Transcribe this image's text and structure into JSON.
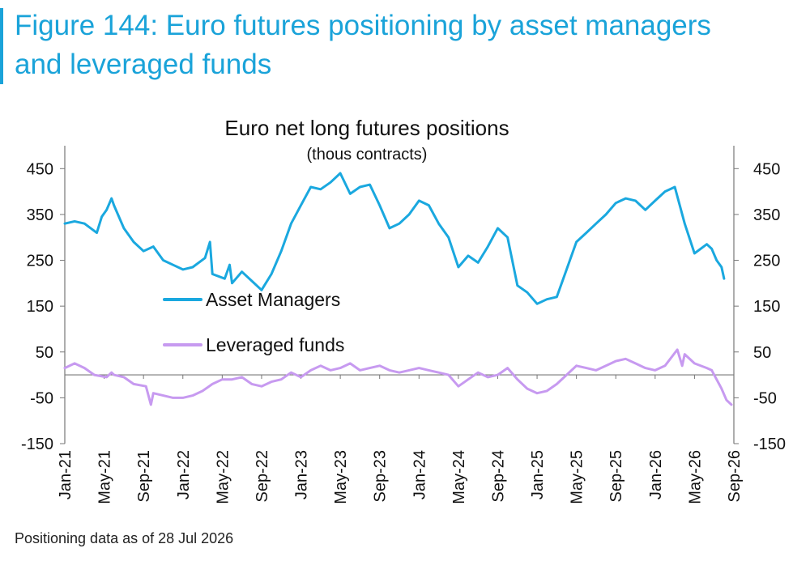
{
  "figure": {
    "title_line1": "Figure 144: Euro futures positioning by asset managers",
    "title_line2": "and leveraged funds",
    "footnote": "Positioning data as of 28 Jul 2026",
    "accent_color": "#1aa3d9"
  },
  "chart_data": {
    "type": "line",
    "title": "Euro net long futures positions",
    "subtitle": "(thous contracts)",
    "xlabel": "",
    "ylabel": "",
    "ylim": [
      -150,
      500
    ],
    "yticks": [
      450,
      350,
      250,
      150,
      50,
      -50,
      -150
    ],
    "xticks": [
      "Jan-21",
      "May-21",
      "Sep-21",
      "Jan-22",
      "May-22",
      "Sep-22",
      "Jan-23",
      "May-23",
      "Sep-23",
      "Jan-24",
      "May-24",
      "Sep-24",
      "Jan-25",
      "May-25",
      "Sep-25",
      "Jan-26",
      "May-26",
      "Sep-26"
    ],
    "x_range_months": [
      "Jan-21",
      "Sep-26"
    ],
    "legend_position": "center-left",
    "grid": false,
    "series": [
      {
        "name": "Asset Managers",
        "color": "#1aa8df",
        "points": [
          [
            "Jan-21",
            330
          ],
          [
            "Feb-21",
            335
          ],
          [
            "Mar-21",
            330
          ],
          [
            "Apr-21",
            310
          ],
          [
            "Apr-21",
            345
          ],
          [
            "May-21",
            360
          ],
          [
            "May-21",
            385
          ],
          [
            "Jun-21",
            370
          ],
          [
            "Jul-21",
            320
          ],
          [
            "Aug-21",
            290
          ],
          [
            "Sep-21",
            270
          ],
          [
            "Oct-21",
            280
          ],
          [
            "Nov-21",
            250
          ],
          [
            "Dec-21",
            240
          ],
          [
            "Jan-22",
            230
          ],
          [
            "Feb-22",
            235
          ],
          [
            "Mar-22",
            255
          ],
          [
            "Mar-22",
            290
          ],
          [
            "Apr-22",
            220
          ],
          [
            "May-22",
            210
          ],
          [
            "May-22",
            240
          ],
          [
            "Jun-22",
            200
          ],
          [
            "Jul-22",
            225
          ],
          [
            "Aug-22",
            205
          ],
          [
            "Sep-22",
            185
          ],
          [
            "Oct-22",
            220
          ],
          [
            "Nov-22",
            270
          ],
          [
            "Dec-22",
            330
          ],
          [
            "Jan-23",
            370
          ],
          [
            "Feb-23",
            410
          ],
          [
            "Mar-23",
            405
          ],
          [
            "Apr-23",
            420
          ],
          [
            "May-23",
            440
          ],
          [
            "Jun-23",
            395
          ],
          [
            "Jul-23",
            410
          ],
          [
            "Aug-23",
            415
          ],
          [
            "Sep-23",
            370
          ],
          [
            "Oct-23",
            320
          ],
          [
            "Nov-23",
            330
          ],
          [
            "Dec-23",
            350
          ],
          [
            "Jan-24",
            380
          ],
          [
            "Feb-24",
            370
          ],
          [
            "Mar-24",
            330
          ],
          [
            "Apr-24",
            300
          ],
          [
            "May-24",
            235
          ],
          [
            "Jun-24",
            260
          ],
          [
            "Jul-24",
            245
          ],
          [
            "Aug-24",
            280
          ],
          [
            "Sep-24",
            320
          ],
          [
            "Oct-24",
            300
          ],
          [
            "Nov-24",
            195
          ],
          [
            "Dec-24",
            180
          ],
          [
            "Jan-25",
            155
          ],
          [
            "Feb-25",
            165
          ],
          [
            "Mar-25",
            170
          ],
          [
            "Apr-25",
            230
          ],
          [
            "May-25",
            290
          ],
          [
            "Jun-25",
            310
          ],
          [
            "Jul-25",
            330
          ],
          [
            "Aug-25",
            350
          ],
          [
            "Sep-25",
            375
          ],
          [
            "Oct-25",
            385
          ],
          [
            "Nov-25",
            380
          ],
          [
            "Dec-25",
            360
          ],
          [
            "Jan-26",
            380
          ],
          [
            "Feb-26",
            400
          ],
          [
            "Mar-26",
            410
          ],
          [
            "Apr-26",
            330
          ],
          [
            "May-26",
            265
          ],
          [
            "Jun-26",
            285
          ],
          [
            "Jun-26",
            275
          ],
          [
            "Jul-26",
            250
          ],
          [
            "Jul-26",
            235
          ],
          [
            "Aug-26",
            210
          ]
        ]
      },
      {
        "name": "Leveraged funds",
        "color": "#c79af0",
        "points": [
          [
            "Jan-21",
            15
          ],
          [
            "Feb-21",
            25
          ],
          [
            "Mar-21",
            15
          ],
          [
            "Apr-21",
            0
          ],
          [
            "May-21",
            -5
          ],
          [
            "May-21",
            5
          ],
          [
            "Jun-21",
            0
          ],
          [
            "Jul-21",
            -5
          ],
          [
            "Aug-21",
            -20
          ],
          [
            "Sep-21",
            -25
          ],
          [
            "Sep-21",
            -65
          ],
          [
            "Oct-21",
            -40
          ],
          [
            "Nov-21",
            -45
          ],
          [
            "Dec-21",
            -50
          ],
          [
            "Jan-22",
            -50
          ],
          [
            "Feb-22",
            -45
          ],
          [
            "Mar-22",
            -35
          ],
          [
            "Apr-22",
            -20
          ],
          [
            "May-22",
            -10
          ],
          [
            "Jun-22",
            -10
          ],
          [
            "Jul-22",
            -5
          ],
          [
            "Aug-22",
            -20
          ],
          [
            "Sep-22",
            -25
          ],
          [
            "Oct-22",
            -15
          ],
          [
            "Nov-22",
            -10
          ],
          [
            "Dec-22",
            5
          ],
          [
            "Jan-23",
            -5
          ],
          [
            "Feb-23",
            10
          ],
          [
            "Mar-23",
            20
          ],
          [
            "Apr-23",
            10
          ],
          [
            "May-23",
            15
          ],
          [
            "Jun-23",
            25
          ],
          [
            "Jul-23",
            10
          ],
          [
            "Aug-23",
            15
          ],
          [
            "Sep-23",
            20
          ],
          [
            "Oct-23",
            10
          ],
          [
            "Nov-23",
            5
          ],
          [
            "Dec-23",
            10
          ],
          [
            "Jan-24",
            15
          ],
          [
            "Feb-24",
            10
          ],
          [
            "Mar-24",
            5
          ],
          [
            "Apr-24",
            0
          ],
          [
            "May-24",
            -25
          ],
          [
            "Jun-24",
            -10
          ],
          [
            "Jul-24",
            5
          ],
          [
            "Aug-24",
            -5
          ],
          [
            "Sep-24",
            0
          ],
          [
            "Oct-24",
            15
          ],
          [
            "Nov-24",
            -10
          ],
          [
            "Dec-24",
            -30
          ],
          [
            "Jan-25",
            -40
          ],
          [
            "Feb-25",
            -35
          ],
          [
            "Mar-25",
            -20
          ],
          [
            "Apr-25",
            0
          ],
          [
            "May-25",
            20
          ],
          [
            "Jun-25",
            15
          ],
          [
            "Jul-25",
            10
          ],
          [
            "Aug-25",
            20
          ],
          [
            "Sep-25",
            30
          ],
          [
            "Oct-25",
            35
          ],
          [
            "Nov-25",
            25
          ],
          [
            "Dec-25",
            15
          ],
          [
            "Jan-26",
            10
          ],
          [
            "Feb-26",
            20
          ],
          [
            "Mar-26",
            55
          ],
          [
            "Mar-26",
            20
          ],
          [
            "Apr-26",
            45
          ],
          [
            "May-26",
            25
          ],
          [
            "Jun-26",
            15
          ],
          [
            "Jun-26",
            10
          ],
          [
            "Jul-26",
            -10
          ],
          [
            "Jul-26",
            -30
          ],
          [
            "Aug-26",
            -55
          ],
          [
            "Aug-26",
            -65
          ]
        ]
      }
    ]
  }
}
